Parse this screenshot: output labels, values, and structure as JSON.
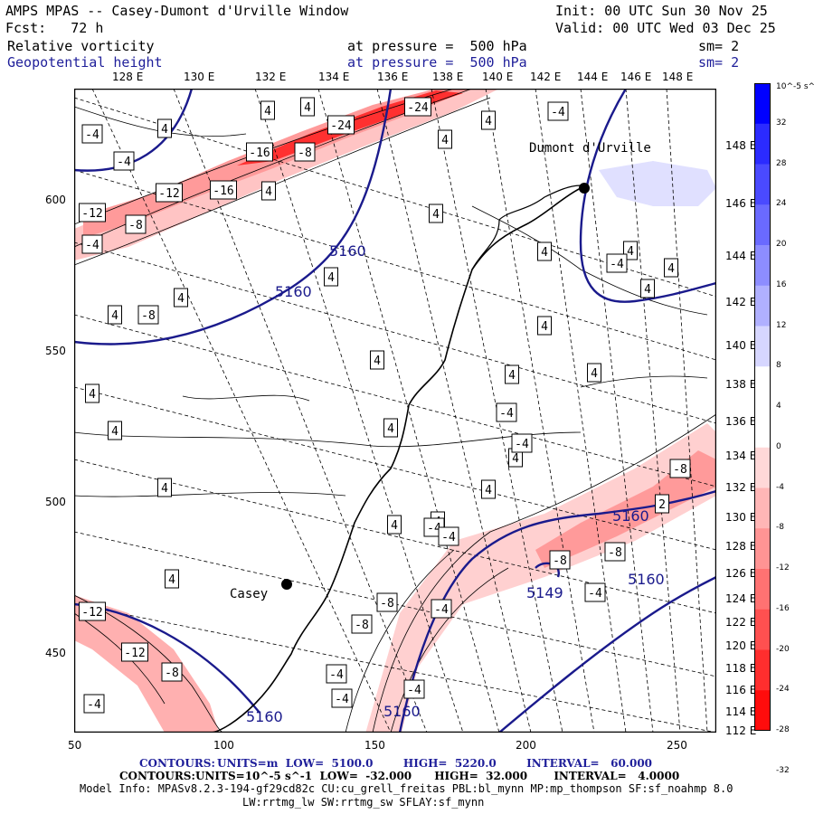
{
  "header": {
    "title": "AMPS MPAS -- Casey-Dumont d'Urville Window",
    "init": "Init: 00 UTC Sun 30 Nov 25",
    "fcst": "Fcst:   72 h",
    "valid": "Valid: 00 UTC Wed 03 Dec 25",
    "field1": {
      "name": "Relative vorticity",
      "level": "at pressure =  500 hPa",
      "sm": "sm= 2"
    },
    "field2": {
      "name": "Geopotential height",
      "level": "at pressure =  500 hPa",
      "sm": "sm= 2"
    }
  },
  "axes": {
    "x_ticks": [
      "50",
      "100",
      "150",
      "200",
      "250"
    ],
    "y_ticks": [
      "600",
      "550",
      "500",
      "450"
    ],
    "lon_top": [
      "128 E",
      "130 E",
      "132 E",
      "134 E",
      "136 E",
      "138 E",
      "140 E",
      "142 E",
      "144 E",
      "146 E",
      "148 E"
    ],
    "lat_right": [
      "148 E",
      "146 E",
      "144 E",
      "142 E",
      "140 E",
      "138 E",
      "136 E",
      "134 E",
      "132 E",
      "130 E",
      "128 E",
      "126 E",
      "124 E",
      "122 E",
      "120 E",
      "118 E",
      "116 E",
      "114 E",
      "112 E"
    ]
  },
  "colorbar": {
    "unit": "10^-5 s^-1",
    "labels": [
      "32",
      "28",
      "24",
      "20",
      "16",
      "12",
      "8",
      "4",
      "0",
      "-4",
      "-8",
      "-12",
      "-16",
      "-20",
      "-24",
      "-28",
      "-32"
    ],
    "colors": [
      "#0000ff",
      "#2b2bff",
      "#4a4aff",
      "#6a6aff",
      "#8d8dff",
      "#b0b0ff",
      "#d6d6ff",
      "#ffffff",
      "#ffffff",
      "#ffd8d8",
      "#ffb6b6",
      "#ff9494",
      "#ff7272",
      "#ff5050",
      "#ff2e2e",
      "#ff0c0c"
    ]
  },
  "stations": [
    {
      "name": "Dumont d'Urville"
    },
    {
      "name": "Casey"
    }
  ],
  "height_labels": [
    "5160",
    "5160",
    "5160",
    "5160",
    "5160",
    "5160",
    "5149"
  ],
  "vorticity_labels": [
    "4",
    "4",
    "-24",
    "-24",
    "4",
    "-4",
    "4",
    "4",
    "-4",
    "-16",
    "-8",
    "-4",
    "-12",
    "-16",
    "4",
    "-12",
    "-8",
    "4",
    "4",
    "-4",
    "4",
    "4",
    "-4",
    "-8",
    "4",
    "4",
    "4",
    "4",
    "4",
    "4",
    "4",
    "4",
    "-4",
    "4",
    "4",
    "4",
    "4",
    "4",
    "4",
    "-8",
    "-4",
    "-8",
    "4",
    "-4",
    "-4",
    "2",
    "-8",
    "-4",
    "-8",
    "-8",
    "-4",
    "-12",
    "-12",
    "-8",
    "-4",
    "-4",
    "-4",
    "-4",
    "4",
    "4"
  ],
  "footer": {
    "line1_label": "CONTOURS:",
    "line1": "UNITS=m  LOW=  5100.0        HIGH=  5220.0        INTERVAL=   60.000",
    "line2_label": "CONTOURS:",
    "line2": "UNITS=10^-5 s^-1  LOW=  -32.000      HIGH=  32.000       INTERVAL=   4.0000",
    "model": "Model Info: MPASv8.2.3-194-gf29cd82c CU:cu_grell_freitas PBL:bl_mynn MP:mp_thompson SF:sf_noahmp 8.0",
    "model2": "LW:rrtmg_lw SW:rrtmg_sw SFLAY:sf_mynn"
  }
}
